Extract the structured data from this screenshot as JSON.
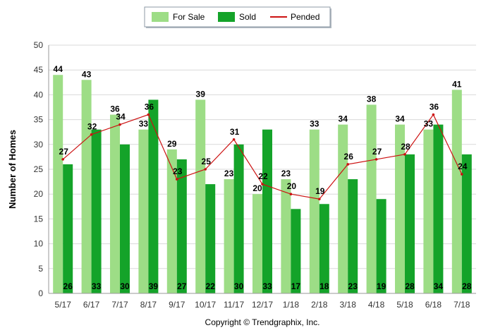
{
  "chart_data": {
    "type": "bar",
    "title": "",
    "xlabel": "",
    "ylabel": "Number of Homes",
    "ylim": [
      0,
      50
    ],
    "yticks": [
      0,
      5,
      10,
      15,
      20,
      25,
      30,
      35,
      40,
      45,
      50
    ],
    "grid": "horizontal",
    "legend_position": "top-center",
    "categories": [
      "5/17",
      "6/17",
      "7/17",
      "8/17",
      "9/17",
      "10/17",
      "11/17",
      "12/17",
      "1/18",
      "2/18",
      "3/18",
      "4/18",
      "5/18",
      "6/18",
      "7/18"
    ],
    "series": [
      {
        "name": "For Sale",
        "kind": "bar",
        "color": "#9ddd86",
        "values": [
          44,
          43,
          36,
          33,
          29,
          39,
          23,
          20,
          23,
          33,
          34,
          38,
          34,
          33,
          41
        ]
      },
      {
        "name": "Sold",
        "kind": "bar",
        "color": "#14a329",
        "values": [
          26,
          33,
          30,
          39,
          27,
          22,
          30,
          33,
          17,
          18,
          23,
          19,
          28,
          34,
          28
        ]
      },
      {
        "name": "Pended",
        "kind": "line",
        "color": "#cc1111",
        "values": [
          27,
          32,
          34,
          36,
          23,
          25,
          31,
          22,
          20,
          19,
          26,
          27,
          28,
          36,
          24
        ]
      }
    ]
  },
  "footer": {
    "copyright": "Copyright © Trendgraphix, Inc."
  }
}
